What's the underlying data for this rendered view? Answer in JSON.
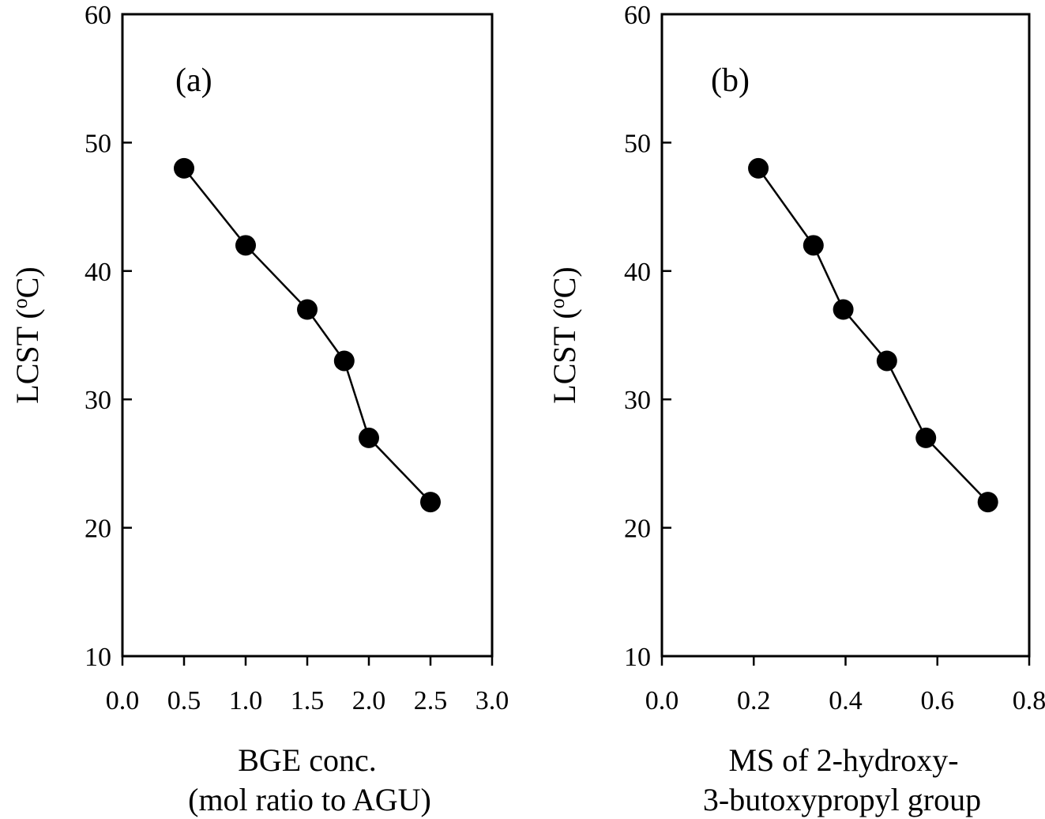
{
  "chart_data": [
    {
      "type": "line",
      "panel_label": "(a)",
      "title": "",
      "xlabel_lines": [
        "BGE conc.",
        "(mol ratio to AGU)"
      ],
      "ylabel": "LCST (",
      "ylabel_sup": "o",
      "ylabel_end": "C)",
      "xlim": [
        0.0,
        3.0
      ],
      "ylim": [
        10,
        60
      ],
      "xticks": [
        "0.0",
        "0.5",
        "1.0",
        "1.5",
        "2.0",
        "2.5",
        "3.0"
      ],
      "yticks": [
        "10",
        "20",
        "30",
        "40",
        "50",
        "60"
      ],
      "grid": false,
      "marker": "filled-circle",
      "series": [
        {
          "x": [
            0.5,
            1.0,
            1.5,
            1.8,
            2.0,
            2.5
          ],
          "y": [
            48,
            42,
            37,
            33,
            27,
            22
          ]
        }
      ]
    },
    {
      "type": "line",
      "panel_label": "(b)",
      "title": "",
      "xlabel_lines": [
        "MS of 2-hydroxy-",
        "3-butoxypropyl group"
      ],
      "ylabel": "LCST (",
      "ylabel_sup": "o",
      "ylabel_end": "C)",
      "xlim": [
        0.0,
        0.8
      ],
      "ylim": [
        10,
        60
      ],
      "xticks": [
        "0.0",
        "0.2",
        "0.4",
        "0.6",
        "0.8"
      ],
      "yticks": [
        "10",
        "20",
        "30",
        "40",
        "50",
        "60"
      ],
      "grid": false,
      "marker": "filled-circle",
      "series": [
        {
          "x": [
            0.21,
            0.33,
            0.395,
            0.49,
            0.575,
            0.71
          ],
          "y": [
            48,
            42,
            37,
            33,
            27,
            22
          ]
        }
      ]
    }
  ]
}
